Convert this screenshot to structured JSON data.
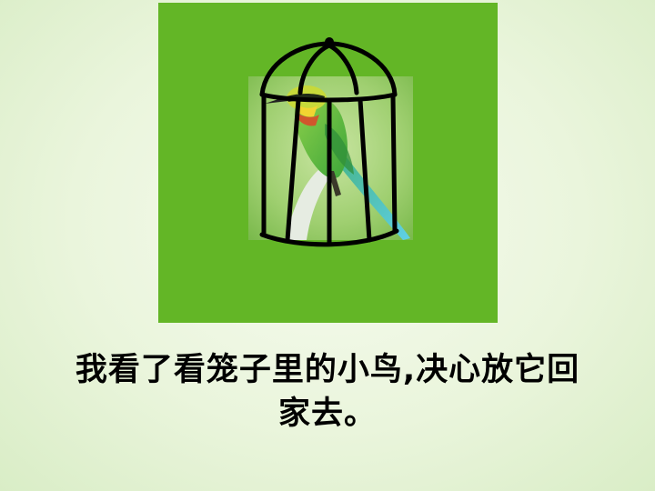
{
  "slide": {
    "panel_color": "#63b626",
    "image_subject": "bird-in-cage-illustration",
    "caption_lines": [
      "我看了看笼子里的小鸟,决心放它回",
      "家去。"
    ]
  }
}
